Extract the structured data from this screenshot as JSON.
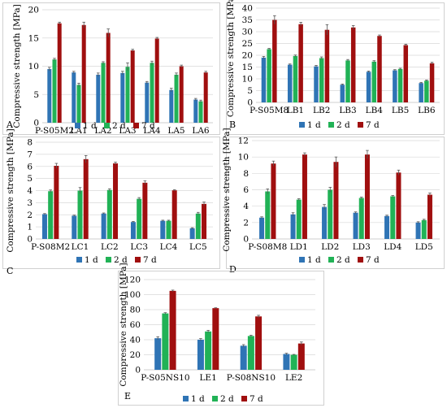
{
  "legend": {
    "entries": [
      {
        "label": "1 d",
        "color": "#2f74b5"
      },
      {
        "label": "2 d",
        "color": "#21b256"
      },
      {
        "label": "7 d",
        "color": "#a00f0f"
      }
    ]
  },
  "chart_data": [
    {
      "id": "A",
      "type": "bar",
      "panel_label": "A",
      "ylabel": "Compressive strength [MPa]",
      "ylim": [
        0,
        20
      ],
      "ytick_step": 5,
      "grid": true,
      "legend": "bottom",
      "categories": [
        "P-S05M2",
        "LA1",
        "LA2",
        "LA3",
        "LA4",
        "LA5",
        "LA6"
      ],
      "series": [
        {
          "name": "1 d",
          "values": [
            9.5,
            8.9,
            8.5,
            8.8,
            7.1,
            5.8,
            4.1
          ],
          "errors": [
            0.3,
            0.2,
            0.3,
            0.3,
            0.2,
            0.3,
            0.2
          ]
        },
        {
          "name": "2 d",
          "values": [
            11.2,
            6.7,
            10.6,
            9.9,
            10.6,
            8.5,
            3.8
          ],
          "errors": [
            0.2,
            0.3,
            0.2,
            0.7,
            0.3,
            0.3,
            0.2
          ]
        },
        {
          "name": "7 d",
          "values": [
            17.6,
            17.3,
            15.9,
            12.8,
            14.9,
            10.0,
            8.9
          ],
          "errors": [
            0.2,
            0.5,
            0.7,
            0.2,
            0.2,
            0.2,
            0.2
          ]
        }
      ]
    },
    {
      "id": "B",
      "type": "bar",
      "panel_label": "B",
      "ylabel": "Compressive strength [MPa]",
      "ylim": [
        0,
        40
      ],
      "ytick_step": 5,
      "grid": true,
      "legend": "bottom",
      "categories": [
        "P-S05M8",
        "LB1",
        "LB2",
        "LB3",
        "LB4",
        "LB5",
        "LB6"
      ],
      "series": [
        {
          "name": "1 d",
          "values": [
            19.0,
            16.0,
            15.3,
            7.5,
            13.0,
            13.6,
            8.2
          ],
          "errors": [
            0.5,
            0.3,
            0.4,
            0.3,
            0.3,
            0.3,
            0.3
          ]
        },
        {
          "name": "2 d",
          "values": [
            22.6,
            19.7,
            18.8,
            17.8,
            17.3,
            14.2,
            9.2
          ],
          "errors": [
            0.3,
            0.4,
            0.5,
            0.4,
            0.4,
            0.3,
            0.3
          ]
        },
        {
          "name": "7 d",
          "values": [
            35.0,
            33.2,
            30.8,
            31.8,
            28.2,
            24.3,
            16.6
          ],
          "errors": [
            1.8,
            0.8,
            2.2,
            0.8,
            0.4,
            0.4,
            0.4
          ]
        }
      ]
    },
    {
      "id": "C",
      "type": "bar",
      "panel_label": "C",
      "ylabel": "Compressive strength [MPa]",
      "ylim": [
        0,
        8
      ],
      "ytick_step": 1,
      "grid": true,
      "legend": "bottom",
      "categories": [
        "P-S08M2",
        "LC1",
        "LC2",
        "LC3",
        "LC4",
        "LC5"
      ],
      "series": [
        {
          "name": "1 d",
          "values": [
            2.05,
            1.92,
            2.1,
            1.4,
            1.5,
            0.88
          ],
          "errors": [
            0.05,
            0.05,
            0.05,
            0.05,
            0.05,
            0.05
          ]
        },
        {
          "name": "2 d",
          "values": [
            3.95,
            4.0,
            4.05,
            3.32,
            1.5,
            2.1
          ],
          "errors": [
            0.1,
            0.25,
            0.1,
            0.1,
            0.05,
            0.1
          ]
        },
        {
          "name": "7 d",
          "values": [
            6.05,
            6.6,
            6.25,
            4.65,
            4.02,
            2.9
          ],
          "errors": [
            0.2,
            0.3,
            0.1,
            0.15,
            0.05,
            0.15
          ]
        }
      ]
    },
    {
      "id": "D",
      "type": "bar",
      "panel_label": "D",
      "ylabel": "Compressive strength [MPa]",
      "ylim": [
        0,
        12
      ],
      "ytick_step": 2,
      "grid": true,
      "legend": "bottom",
      "categories": [
        "P-S08M8",
        "LD1",
        "LD2",
        "LD3",
        "LD4",
        "LD5"
      ],
      "series": [
        {
          "name": "1 d",
          "values": [
            2.6,
            3.0,
            3.9,
            3.2,
            2.8,
            2.0
          ],
          "errors": [
            0.1,
            0.2,
            0.3,
            0.1,
            0.1,
            0.1
          ]
        },
        {
          "name": "2 d",
          "values": [
            5.8,
            4.8,
            6.0,
            5.0,
            5.2,
            2.3
          ],
          "errors": [
            0.3,
            0.1,
            0.3,
            0.1,
            0.1,
            0.1
          ]
        },
        {
          "name": "7 d",
          "values": [
            9.2,
            10.3,
            9.4,
            10.3,
            8.1,
            5.4
          ],
          "errors": [
            0.3,
            0.2,
            0.6,
            0.5,
            0.3,
            0.2
          ]
        }
      ]
    },
    {
      "id": "E",
      "type": "bar",
      "panel_label": "E",
      "ylabel": "Compressive strength [MPa]",
      "ylim": [
        0,
        120
      ],
      "ytick_step": 20,
      "grid": true,
      "legend": "bottom",
      "categories": [
        "P-S05NS10",
        "LE1",
        "P-S08NS10",
        "LE2"
      ],
      "series": [
        {
          "name": "1 d",
          "values": [
            42,
            40,
            32,
            21
          ],
          "errors": [
            2,
            1.5,
            1.5,
            1
          ]
        },
        {
          "name": "2 d",
          "values": [
            75,
            51,
            45,
            20
          ],
          "errors": [
            1,
            1.5,
            1,
            0.5
          ]
        },
        {
          "name": "7 d",
          "values": [
            105,
            82,
            71,
            35
          ],
          "errors": [
            1,
            0.5,
            1.5,
            2
          ]
        }
      ]
    }
  ]
}
